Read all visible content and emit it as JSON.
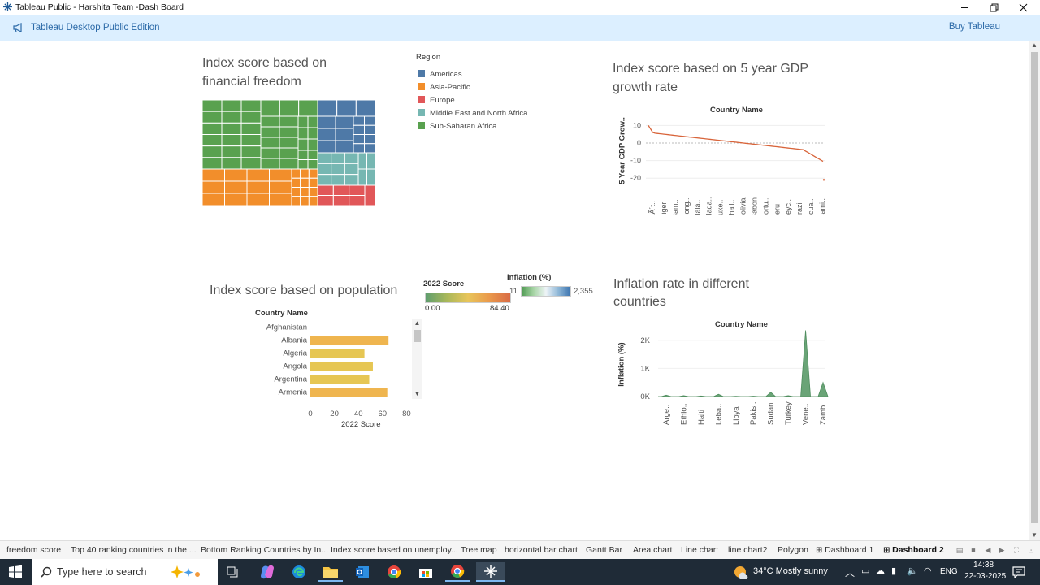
{
  "window": {
    "title": "Tableau Public - Harshita Team -Dash Board"
  },
  "banner": {
    "edition": "Tableau Desktop Public Edition",
    "buy": "Buy Tableau"
  },
  "treemap": {
    "title_line1": "Index score based on",
    "title_line2": "financial  freedom",
    "legend_title": "Region",
    "regions": [
      {
        "name": "Americas",
        "color": "#4e79a7"
      },
      {
        "name": "Asia-Pacific",
        "color": "#f28e2b"
      },
      {
        "name": "Europe",
        "color": "#e15759"
      },
      {
        "name": "Middle East and North Africa",
        "color": "#76b7b2"
      },
      {
        "name": "Sub-Saharan Africa",
        "color": "#59a14f"
      }
    ]
  },
  "gdp_chart": {
    "title_line1": "Index score based on 5 year GDP",
    "title_line2": "growth rate",
    "header": "Country Name",
    "ylabel": "5 Year GDP Grow..",
    "yticks": [
      "10",
      "0",
      "-10",
      "-20"
    ],
    "xticks": [
      "CÃ´t..",
      "Niger",
      "Gam..",
      "Cong..",
      "Mala..",
      "Mada..",
      "Luxe..",
      "Thail..",
      "Bolivia",
      "Gabon",
      "Portu..",
      "Peru",
      "Seyc..",
      "Brazil",
      "Ecua..",
      "Nami.."
    ]
  },
  "population_chart": {
    "title": "Index score based on population",
    "header": "Country Name",
    "xlabel": "2022 Score",
    "xticks": [
      "0",
      "20",
      "40",
      "60",
      "80"
    ],
    "score_legend_title": "2022 Score",
    "score_min": "0.00",
    "score_max": "84.40",
    "inflation_legend_title": "Inflation (%)",
    "inflation_min": "11",
    "inflation_max": "2,355"
  },
  "inflation_chart": {
    "title_line1": "Inflation rate in different",
    "title_line2": "countries",
    "header": "Country Name",
    "ylabel": "Inflation (%)",
    "yticks": [
      "2K",
      "1K",
      "0K"
    ],
    "xticks": [
      "Arge..",
      "Ethio..",
      "Haiti",
      "Leba..",
      "Libya",
      "Pakis..",
      "Sudan",
      "Turkey",
      "Vene..",
      "Zamb.."
    ]
  },
  "chart_data": [
    {
      "type": "bar",
      "title": "Index score based on population",
      "categories": [
        "Afghanistan",
        "Albania",
        "Algeria",
        "Angola",
        "Argentina",
        "Armenia"
      ],
      "values": [
        0,
        65,
        45,
        52,
        49,
        64
      ],
      "xlabel": "2022 Score",
      "ylabel": "Country Name",
      "xlim": [
        0,
        80
      ]
    },
    {
      "type": "area",
      "title": "Inflation rate in different countries",
      "categories": [
        "Argentina",
        "Ethiopia",
        "Haiti",
        "Lebanon",
        "Libya",
        "Pakistan",
        "Sudan",
        "Turkey",
        "Venezuela",
        "Zambia"
      ],
      "values": [
        50,
        30,
        20,
        80,
        10,
        15,
        150,
        30,
        2355,
        500
      ],
      "ylabel": "Inflation (%)",
      "ylim": [
        0,
        2400
      ]
    }
  ],
  "tabs": [
    "freedom score",
    "Top 40 ranking  countries in the ...",
    "Bottom Ranking Countries by In...",
    "Index score based on unemploy...",
    "Tree map",
    "horizontal bar chart",
    "Gantt Bar",
    "Area chart",
    "Line chart",
    "line chart2",
    "Polygon",
    "Dashboard 1",
    "Dashboard 2"
  ],
  "taskbar": {
    "search_placeholder": "Type here to search",
    "weather": "34°C  Mostly sunny",
    "language": "ENG",
    "time": "14:38",
    "date": "22-03-2025"
  }
}
